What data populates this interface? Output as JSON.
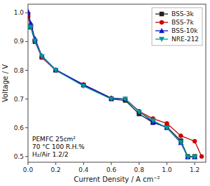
{
  "chart_data": {
    "type": "line",
    "xlabel": "Current Density / A cm⁻²",
    "ylabel": "Voltage / V",
    "annotation": "PEMFC 25cm²\n70 °C 100 R.H.%\nH₂/Air 1.2/2",
    "xlim": [
      0,
      1.28
    ],
    "ylim": [
      0.48,
      1.03
    ],
    "xticks": [
      {
        "value": 0.0,
        "label": "0.0"
      },
      0.2,
      0.4,
      0.6,
      0.8,
      {
        "value": 1.0,
        "label": "1.0"
      },
      1.2
    ],
    "yticks": [
      0.5,
      0.6,
      0.7,
      0.8,
      0.9,
      {
        "value": 1.0,
        "label": "1.0"
      }
    ],
    "legend": "upper right",
    "series": [
      {
        "name": "BSS-3k",
        "color": "#222222",
        "marker": "square",
        "x": [
          0.0,
          0.02,
          0.05,
          0.1,
          0.2,
          0.4,
          0.6,
          0.7,
          0.8,
          0.9,
          1.0,
          1.1,
          1.15,
          1.2
        ],
        "values": [
          0.99,
          0.95,
          0.9,
          0.845,
          0.8,
          0.748,
          0.7,
          0.695,
          0.648,
          0.618,
          0.603,
          0.555,
          0.5,
          0.5
        ]
      },
      {
        "name": "BSS-7k",
        "color": "#cc0000",
        "marker": "circle",
        "x": [
          0.0,
          0.02,
          0.05,
          0.1,
          0.2,
          0.4,
          0.6,
          0.7,
          0.8,
          0.9,
          1.0,
          1.1,
          1.2,
          1.25
        ],
        "values": [
          0.99,
          0.958,
          0.905,
          0.845,
          0.8,
          0.75,
          0.703,
          0.7,
          0.657,
          0.632,
          0.615,
          0.572,
          0.553,
          0.5
        ]
      },
      {
        "name": "BSS-10k",
        "color": "#1111cc",
        "marker": "triangle-up",
        "x": [
          0.0,
          0.02,
          0.05,
          0.1,
          0.2,
          0.4,
          0.6,
          0.7,
          0.8,
          0.9,
          1.0,
          1.1,
          1.15,
          1.2
        ],
        "values": [
          1.005,
          0.963,
          0.91,
          0.85,
          0.802,
          0.75,
          0.703,
          0.7,
          0.657,
          0.62,
          0.6,
          0.548,
          0.498,
          0.498
        ]
      },
      {
        "name": "NRE-212",
        "color": "#009999",
        "marker": "triangle-down",
        "x": [
          0.0,
          0.02,
          0.05,
          0.1,
          0.2,
          0.4,
          0.6,
          0.7,
          0.8,
          0.9,
          1.0,
          1.1,
          1.15,
          1.2
        ],
        "values": [
          0.95,
          0.95,
          0.902,
          0.848,
          0.8,
          0.745,
          0.7,
          0.7,
          0.655,
          0.625,
          0.6,
          0.55,
          0.498,
          0.498
        ]
      }
    ]
  }
}
